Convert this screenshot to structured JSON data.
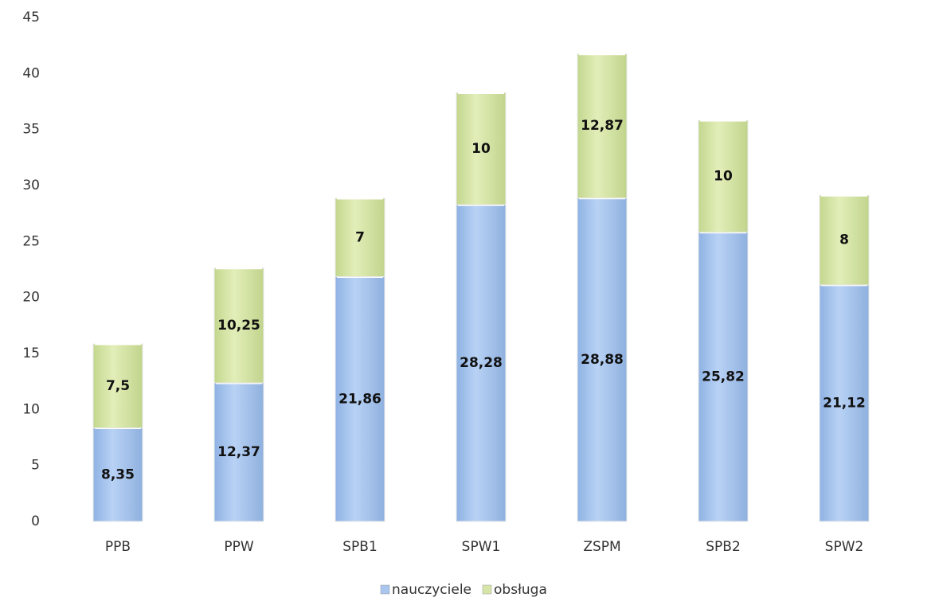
{
  "chart_data": {
    "type": "stacked-bar",
    "categories": [
      "PPB",
      "PPW",
      "SPB1",
      "SPW1",
      "ZSPM",
      "SPB2",
      "SPW2"
    ],
    "series": [
      {
        "name": "nauczyciele",
        "color": "#a9c6ee",
        "values": [
          8.35,
          12.37,
          21.86,
          28.28,
          28.88,
          25.82,
          21.12
        ],
        "value_labels": [
          "8,35",
          "12,37",
          "21,86",
          "28,28",
          "28,88",
          "25,82",
          "21,12"
        ]
      },
      {
        "name": "obsługa",
        "color": "#d6e6a8",
        "values": [
          7.5,
          10.25,
          7,
          10,
          12.87,
          10,
          8
        ],
        "value_labels": [
          "7,5",
          "10,25",
          "7",
          "10",
          "12,87",
          "10",
          "8"
        ]
      }
    ],
    "ylim": [
      0,
      45
    ],
    "yticks": [
      0,
      5,
      10,
      15,
      20,
      25,
      30,
      35,
      40,
      45
    ],
    "grid": false,
    "legend": "bottom"
  }
}
